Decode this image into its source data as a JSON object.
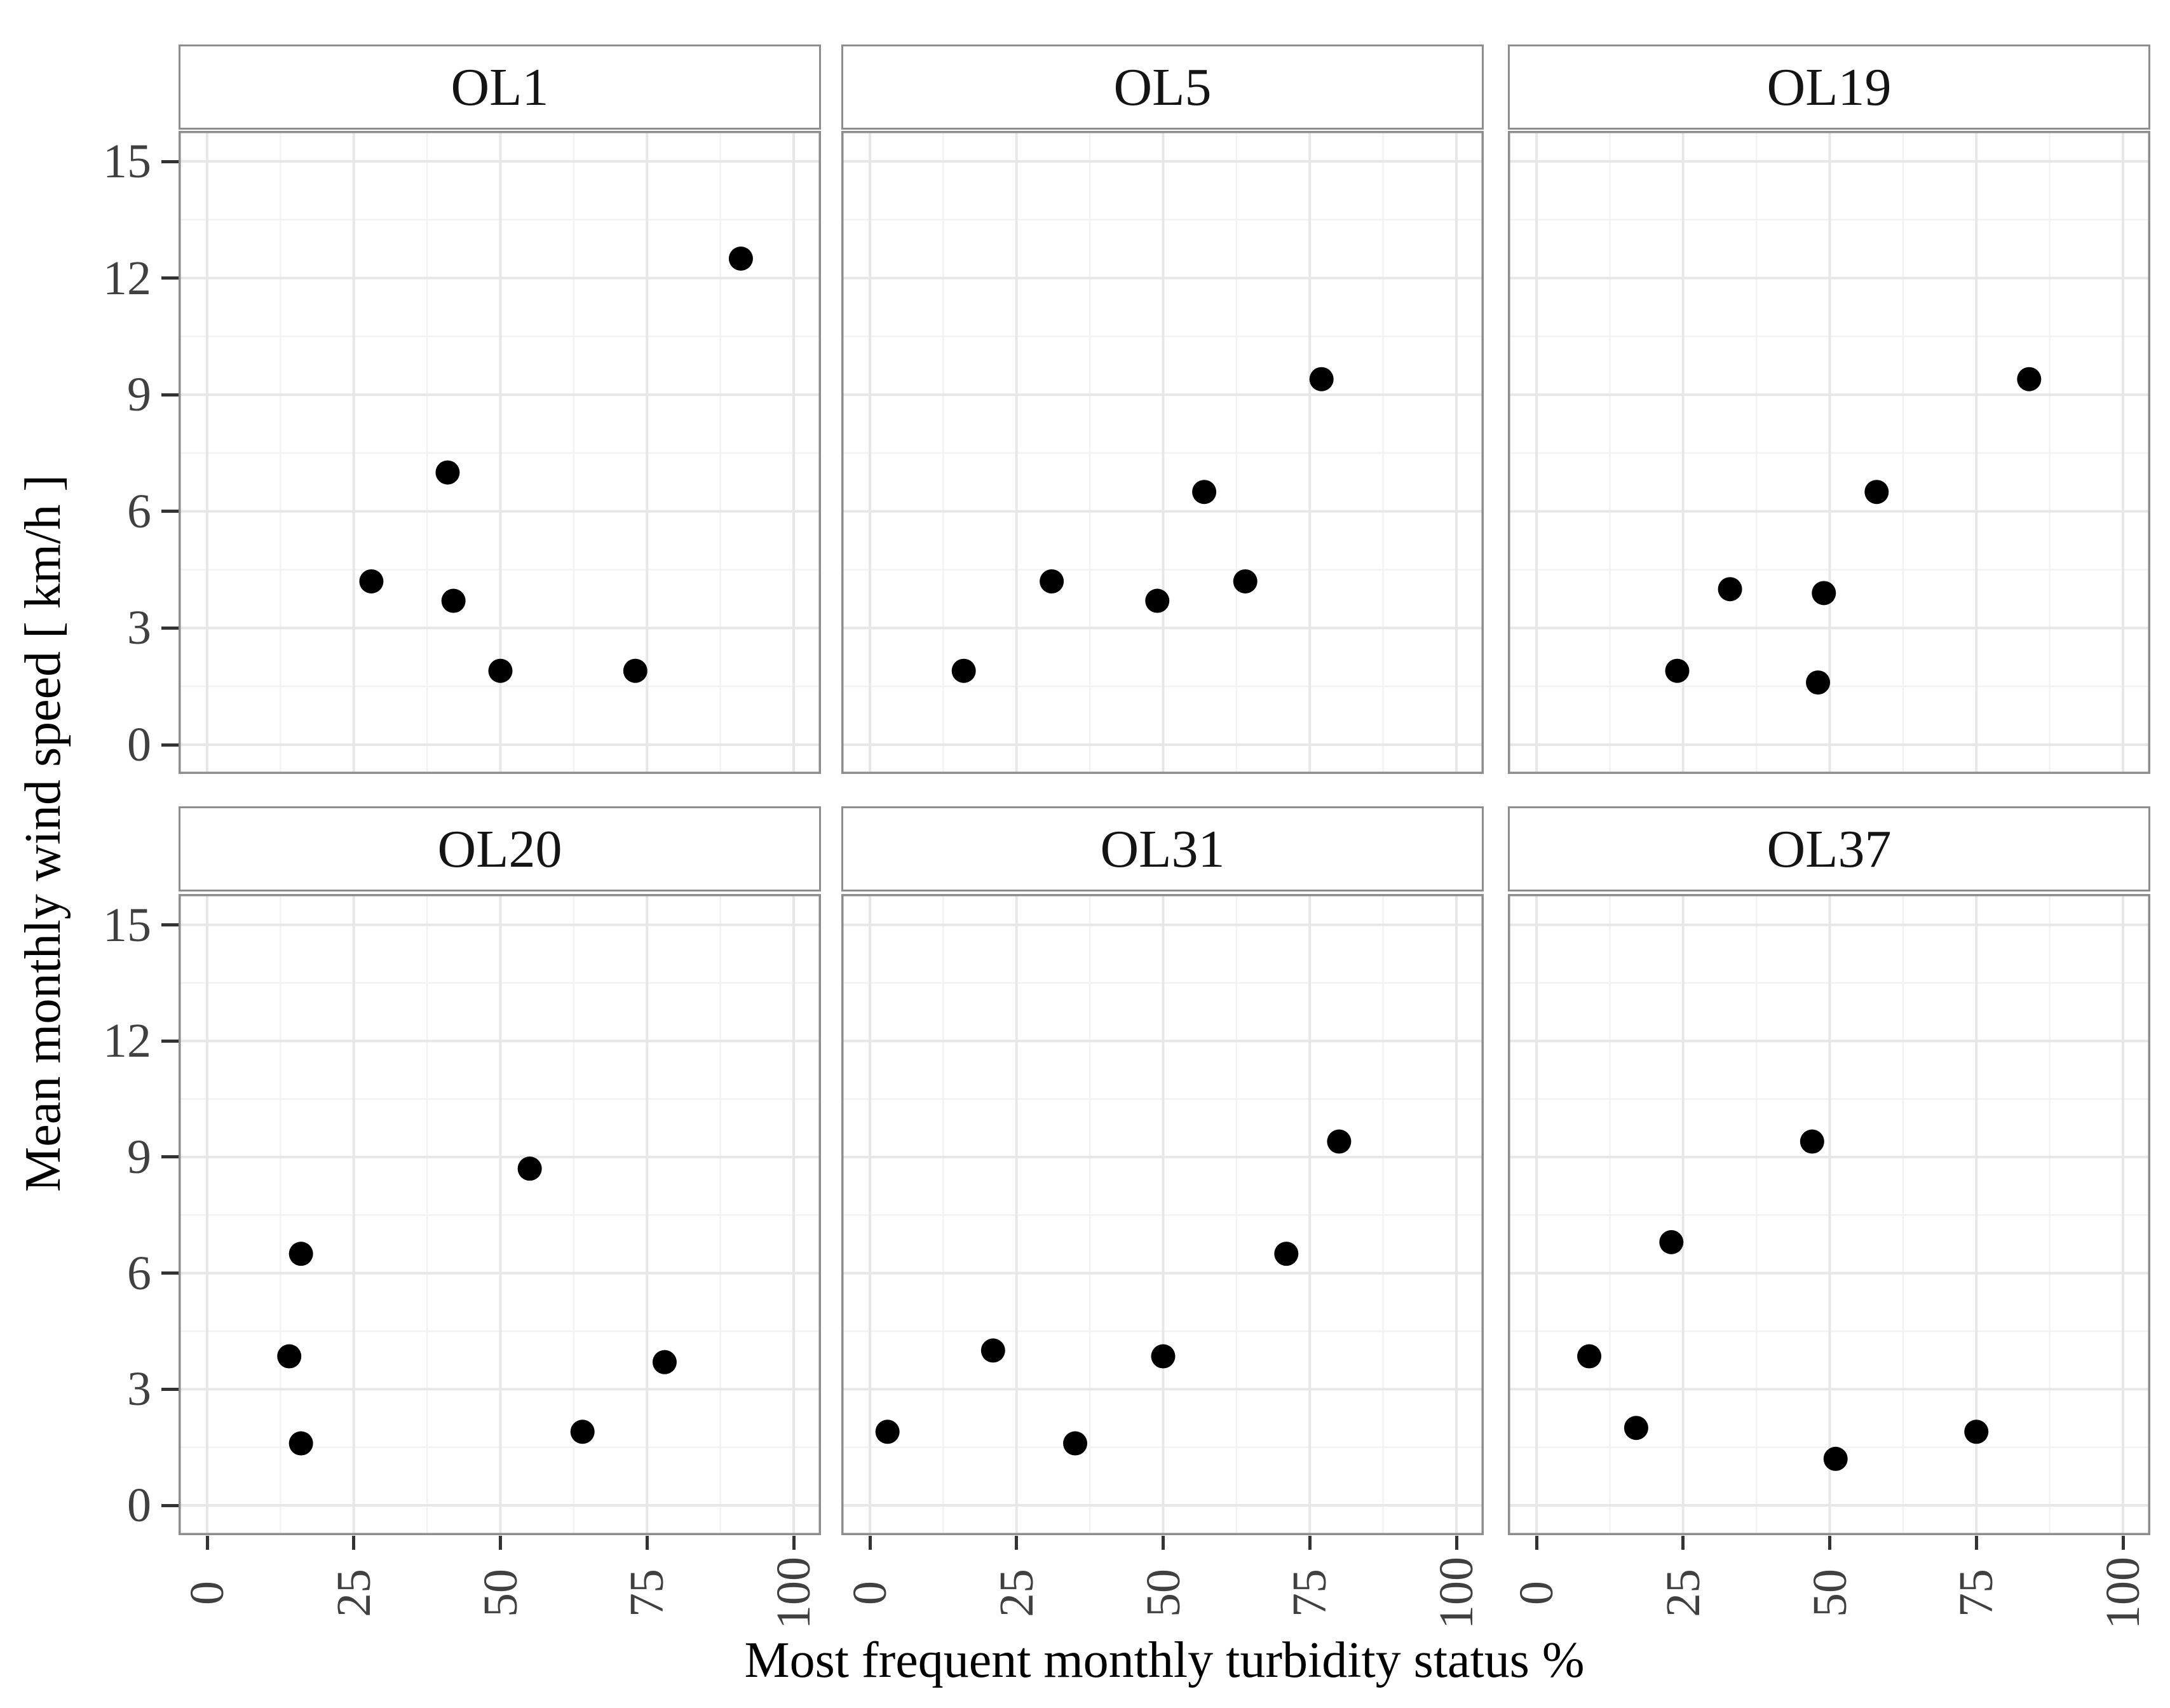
{
  "chart_data": {
    "type": "scatter",
    "layout": "facet_grid_2_rows_3_cols",
    "xlabel": "Most frequent monthly turbidity status %",
    "ylabel": "Mean monthly wind speed [ km/h ]",
    "x_ticks": [
      0,
      25,
      50,
      75,
      100
    ],
    "y_ticks": [
      0,
      3,
      6,
      9,
      12,
      15
    ],
    "x_minor": [
      12.5,
      37.5,
      62.5,
      87.5
    ],
    "y_minor": [
      1.5,
      4.5,
      7.5,
      10.5,
      13.5
    ],
    "xlim": [
      -5,
      105
    ],
    "ylim": [
      -0.75,
      15.75
    ],
    "grid": "major+minor",
    "facets": [
      {
        "title": "OL1",
        "points": [
          [
            28,
            4.2
          ],
          [
            41,
            7.0
          ],
          [
            42,
            3.7
          ],
          [
            50,
            1.9
          ],
          [
            73,
            1.9
          ],
          [
            91,
            12.5
          ]
        ]
      },
      {
        "title": "OL5",
        "points": [
          [
            16,
            1.9
          ],
          [
            31,
            4.2
          ],
          [
            49,
            3.7
          ],
          [
            57,
            6.5
          ],
          [
            64,
            4.2
          ],
          [
            77,
            9.4
          ]
        ]
      },
      {
        "title": "OL19",
        "points": [
          [
            24,
            1.9
          ],
          [
            33,
            4.0
          ],
          [
            48,
            1.6
          ],
          [
            49,
            3.9
          ],
          [
            58,
            6.5
          ],
          [
            84,
            9.4
          ]
        ]
      },
      {
        "title": "OL20",
        "points": [
          [
            14,
            3.85
          ],
          [
            16,
            1.6
          ],
          [
            16,
            6.5
          ],
          [
            55,
            8.7
          ],
          [
            64,
            1.9
          ],
          [
            78,
            3.7
          ]
        ]
      },
      {
        "title": "OL31",
        "points": [
          [
            3,
            1.9
          ],
          [
            21,
            4.0
          ],
          [
            35,
            1.6
          ],
          [
            50,
            3.85
          ],
          [
            71,
            6.5
          ],
          [
            80,
            9.4
          ]
        ]
      },
      {
        "title": "OL37",
        "points": [
          [
            9,
            3.85
          ],
          [
            17,
            2.0
          ],
          [
            23,
            6.8
          ],
          [
            47,
            9.4
          ],
          [
            51,
            1.2
          ],
          [
            75,
            1.9
          ]
        ]
      }
    ],
    "style": {
      "point_color": "#000000",
      "grid_major": "#e7e7e7",
      "grid_minor": "#f2f2f2",
      "panel_border": "#8d8d8d",
      "tick_mark": "#333333",
      "tick_label": "#404040",
      "axis_title": "#000000",
      "strip_background": "#ffffff",
      "strip_text": "#141414",
      "background": "#ffffff"
    }
  }
}
